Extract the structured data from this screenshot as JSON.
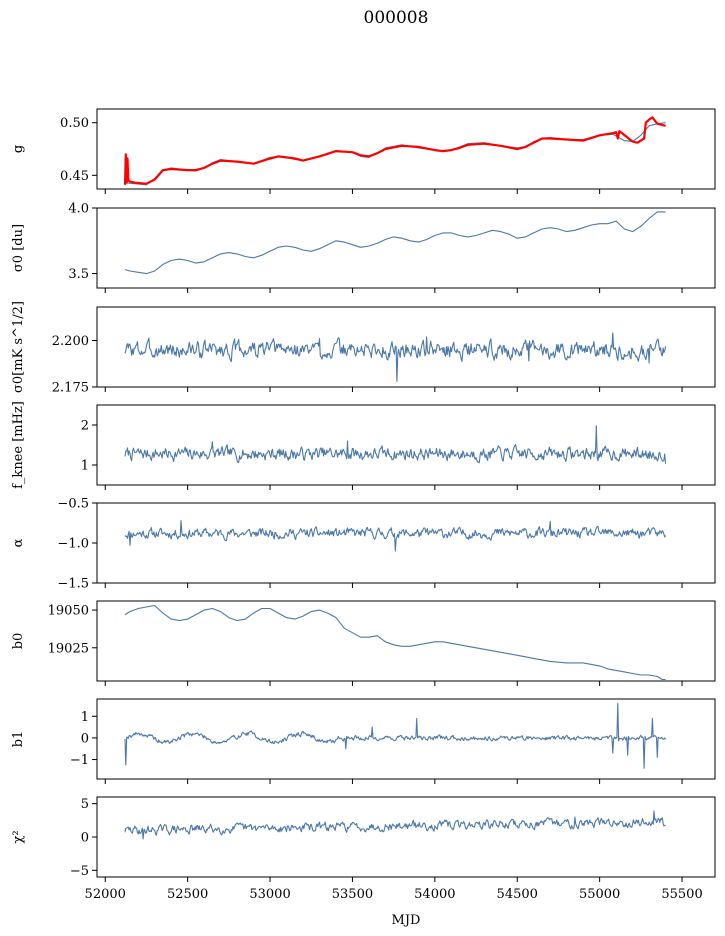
{
  "figure_title": "000008",
  "colors": {
    "series": "#4c78a8",
    "overlay": "#ff0000",
    "axes": "#000000"
  },
  "chart_data": [
    {
      "type": "line",
      "id": "g",
      "ylabel": "g",
      "ylim": [
        0.437,
        0.513
      ],
      "yticks": [
        0.45,
        0.5
      ],
      "yticklabels": [
        "0.45",
        "0.50"
      ],
      "xlim": [
        51950,
        55700
      ],
      "xticks": [
        52000,
        52500,
        53000,
        53500,
        54000,
        54500,
        55000,
        55500
      ],
      "series": [
        {
          "color": "#4c78a8",
          "x": [
            52120,
            52180,
            52250,
            52300,
            52350,
            52400,
            52500,
            52550,
            52600,
            52650,
            52700,
            52800,
            52900,
            53000,
            53050,
            53100,
            53150,
            53200,
            53300,
            53400,
            53500,
            53550,
            53600,
            53650,
            53700,
            53800,
            53900,
            54000,
            54050,
            54100,
            54150,
            54200,
            54300,
            54400,
            54500,
            54550,
            54600,
            54650,
            54700,
            54800,
            54900,
            55000,
            55080,
            55150,
            55200,
            55250,
            55300,
            55350,
            55400
          ],
          "y": [
            0.443,
            0.442,
            0.441,
            0.447,
            0.455,
            0.457,
            0.455,
            0.454,
            0.457,
            0.462,
            0.465,
            0.463,
            0.461,
            0.467,
            0.468,
            0.467,
            0.465,
            0.464,
            0.468,
            0.473,
            0.472,
            0.468,
            0.467,
            0.471,
            0.476,
            0.479,
            0.476,
            0.474,
            0.473,
            0.474,
            0.477,
            0.48,
            0.481,
            0.478,
            0.476,
            0.477,
            0.482,
            0.485,
            0.486,
            0.484,
            0.484,
            0.488,
            0.489,
            0.483,
            0.482,
            0.488,
            0.497,
            0.499,
            0.5
          ]
        },
        {
          "color": "#ff0000",
          "x": [
            52120,
            52125,
            52130,
            52135,
            52140,
            52150,
            52180,
            52250,
            52300,
            52350,
            52400,
            52500,
            52550,
            52600,
            52650,
            52700,
            52800,
            52900,
            53000,
            53050,
            53100,
            53150,
            53200,
            53300,
            53400,
            53500,
            53550,
            53600,
            53650,
            53700,
            53800,
            53900,
            54000,
            54050,
            54100,
            54150,
            54200,
            54300,
            54400,
            54500,
            54550,
            54600,
            54650,
            54700,
            54800,
            54900,
            55000,
            55080,
            55100,
            55110,
            55120,
            55200,
            55230,
            55250,
            55270,
            55280,
            55300,
            55320,
            55350,
            55400
          ],
          "y": [
            0.441,
            0.47,
            0.443,
            0.466,
            0.445,
            0.444,
            0.443,
            0.442,
            0.446,
            0.455,
            0.456,
            0.455,
            0.455,
            0.457,
            0.461,
            0.464,
            0.463,
            0.461,
            0.466,
            0.468,
            0.467,
            0.466,
            0.464,
            0.468,
            0.473,
            0.472,
            0.469,
            0.468,
            0.471,
            0.475,
            0.478,
            0.477,
            0.474,
            0.473,
            0.474,
            0.476,
            0.479,
            0.48,
            0.478,
            0.475,
            0.477,
            0.481,
            0.485,
            0.485,
            0.484,
            0.483,
            0.488,
            0.49,
            0.491,
            0.485,
            0.492,
            0.482,
            0.481,
            0.483,
            0.485,
            0.5,
            0.503,
            0.505,
            0.499,
            0.497
          ]
        }
      ]
    },
    {
      "type": "line",
      "id": "sigma0",
      "ylabel": "σ0 [du]",
      "ylim": [
        3.39,
        4.0
      ],
      "yticks": [
        3.5,
        4.0
      ],
      "yticklabels": [
        "3.5",
        "4.0"
      ],
      "series": [
        {
          "color": "#4c78a8",
          "x": [
            52120,
            52150,
            52200,
            52250,
            52300,
            52350,
            52400,
            52450,
            52500,
            52550,
            52600,
            52650,
            52700,
            52750,
            52800,
            52850,
            52900,
            52950,
            53000,
            53050,
            53100,
            53150,
            53200,
            53250,
            53300,
            53350,
            53400,
            53450,
            53500,
            53550,
            53600,
            53650,
            53700,
            53750,
            53800,
            53850,
            53900,
            53950,
            54000,
            54050,
            54100,
            54150,
            54200,
            54250,
            54300,
            54350,
            54400,
            54450,
            54500,
            54550,
            54600,
            54650,
            54700,
            54750,
            54800,
            54850,
            54900,
            54950,
            55000,
            55050,
            55100,
            55150,
            55200,
            55250,
            55300,
            55350,
            55400
          ],
          "y": [
            3.53,
            3.52,
            3.51,
            3.5,
            3.52,
            3.57,
            3.6,
            3.61,
            3.6,
            3.58,
            3.59,
            3.62,
            3.65,
            3.66,
            3.65,
            3.63,
            3.62,
            3.64,
            3.67,
            3.7,
            3.71,
            3.7,
            3.68,
            3.67,
            3.69,
            3.72,
            3.75,
            3.74,
            3.72,
            3.7,
            3.71,
            3.73,
            3.76,
            3.78,
            3.77,
            3.75,
            3.74,
            3.76,
            3.79,
            3.81,
            3.81,
            3.79,
            3.78,
            3.79,
            3.81,
            3.83,
            3.82,
            3.8,
            3.77,
            3.78,
            3.81,
            3.84,
            3.85,
            3.84,
            3.82,
            3.83,
            3.85,
            3.87,
            3.88,
            3.88,
            3.9,
            3.84,
            3.82,
            3.86,
            3.92,
            3.97,
            3.97
          ]
        }
      ]
    },
    {
      "type": "line",
      "id": "sigma_flux",
      "ylabel": "σ0[mK s^1/2]",
      "ylim": [
        2.175,
        2.218
      ],
      "yticks": [
        2.175,
        2.2
      ],
      "yticklabels": [
        "2.175",
        "2.200"
      ],
      "series": [
        {
          "color": "#4c78a8",
          "generator": {
            "seed": 3,
            "step": 5,
            "baseline": 2.195,
            "amp": 0.005,
            "events": [
              [
                53770,
                -0.017
              ],
              [
                52450,
                -0.004
              ],
              [
                54570,
                -0.006
              ],
              [
                55300,
                -0.007
              ],
              [
                55080,
                0.009
              ],
              [
                53300,
                0.006
              ],
              [
                53950,
                0.007
              ]
            ],
            "bounds": [
              2.175,
              2.218
            ]
          }
        }
      ]
    },
    {
      "type": "line",
      "id": "fknee",
      "ylabel": "f_knee [mHz]",
      "ylim": [
        0.5,
        2.5
      ],
      "yticks": [
        1,
        2
      ],
      "yticklabels": [
        "1",
        "2"
      ],
      "series": [
        {
          "color": "#4c78a8",
          "generator": {
            "seed": 7,
            "step": 5,
            "baseline": 1.28,
            "amp": 0.18,
            "events": [
              [
                54980,
                0.7
              ],
              [
                53470,
                0.32
              ],
              [
                52650,
                0.3
              ],
              [
                55400,
                -0.25
              ]
            ],
            "bounds": [
              0.8,
              2.0
            ]
          }
        }
      ]
    },
    {
      "type": "line",
      "id": "alpha",
      "ylabel": "α",
      "ylim": [
        -1.5,
        -0.5
      ],
      "yticks": [
        -1.5,
        -1.0,
        -0.5
      ],
      "yticklabels": [
        "−1.5",
        "−1.0",
        "−0.5"
      ],
      "series": [
        {
          "color": "#4c78a8",
          "generator": {
            "seed": 11,
            "step": 5,
            "baseline": -0.88,
            "amp": 0.07,
            "events": [
              [
                53760,
                -0.22
              ],
              [
                52460,
                0.16
              ],
              [
                54700,
                0.15
              ],
              [
                52150,
                -0.15
              ]
            ],
            "bounds": [
              -1.12,
              -0.68
            ]
          }
        }
      ]
    },
    {
      "type": "line",
      "id": "b0",
      "ylabel": "b0",
      "ylim": [
        19003,
        19056
      ],
      "yticks": [
        19025,
        19050
      ],
      "yticklabels": [
        "19025",
        "19050"
      ],
      "series": [
        {
          "color": "#4c78a8",
          "x": [
            52120,
            52150,
            52200,
            52250,
            52300,
            52350,
            52400,
            52450,
            52500,
            52550,
            52600,
            52650,
            52700,
            52750,
            52800,
            52850,
            52900,
            52950,
            53000,
            53050,
            53100,
            53150,
            53200,
            53250,
            53300,
            53350,
            53400,
            53450,
            53500,
            53550,
            53600,
            53650,
            53700,
            53750,
            53800,
            53850,
            53900,
            53950,
            54000,
            54050,
            54100,
            54150,
            54200,
            54250,
            54300,
            54400,
            54500,
            54550,
            54600,
            54650,
            54700,
            54800,
            54900,
            54950,
            55000,
            55050,
            55100,
            55150,
            55200,
            55250,
            55300,
            55350,
            55380,
            55400
          ],
          "y": [
            19047,
            19049,
            19051,
            19052,
            19053,
            19048,
            19044,
            19043,
            19044,
            19047,
            19050,
            19051,
            19049,
            19045,
            19043,
            19044,
            19048,
            19051,
            19051,
            19048,
            19045,
            19044,
            19046,
            19049,
            19050,
            19048,
            19045,
            19038,
            19035,
            19032,
            19032,
            19033,
            19029,
            19027,
            19026,
            19026,
            19027,
            19028,
            19029,
            19029,
            19028,
            19027,
            19026,
            19025,
            19024,
            19022,
            19020,
            19019,
            19018,
            19017,
            19016,
            19015,
            19015,
            19014,
            19013,
            19011,
            19010,
            19009,
            19008,
            19007,
            19007,
            19006,
            19004,
            19004
          ]
        }
      ]
    },
    {
      "type": "line",
      "id": "b1",
      "ylabel": "b1",
      "ylim": [
        -1.9,
        1.8
      ],
      "yticks": [
        -1,
        0,
        1
      ],
      "yticklabels": [
        "−1",
        "0",
        "1"
      ],
      "series": [
        {
          "color": "#4c78a8",
          "generator": {
            "seed": 19,
            "step": 5,
            "baseline": 0.0,
            "amp": 0.13,
            "wave": {
              "amp": 0.2,
              "period": 330,
              "until": 53400
            },
            "events": [
              [
                52125,
                -1.25
              ],
              [
                53620,
                0.5
              ],
              [
                53890,
                0.9
              ],
              [
                55080,
                -0.7
              ],
              [
                55110,
                1.6
              ],
              [
                55170,
                -0.8
              ],
              [
                55270,
                -1.4
              ],
              [
                55320,
                0.9
              ],
              [
                55350,
                -0.9
              ],
              [
                53460,
                -0.5
              ]
            ],
            "bounds": [
              -1.8,
              1.7
            ]
          }
        }
      ]
    },
    {
      "type": "line",
      "id": "chi2",
      "ylabel": "χ²",
      "ylim": [
        -6,
        6
      ],
      "yticks": [
        -5,
        0,
        5
      ],
      "yticklabels": [
        "−5",
        "0",
        "5"
      ],
      "xlabel": "MJD",
      "xticklabels": [
        "52000",
        "52500",
        "53000",
        "53500",
        "54000",
        "54500",
        "55000",
        "55500"
      ],
      "series": [
        {
          "color": "#4c78a8",
          "generator": {
            "seed": 29,
            "step": 5,
            "baseline": 1.3,
            "amp": 0.75,
            "trend": [
              52120,
              1.0,
              55400,
              2.3
            ],
            "events": [
              [
                52230,
                -1.6
              ],
              [
                55330,
                2.6
              ],
              [
                54850,
                1.7
              ]
            ],
            "bounds": [
              -1.6,
              4.6
            ]
          }
        }
      ]
    }
  ]
}
